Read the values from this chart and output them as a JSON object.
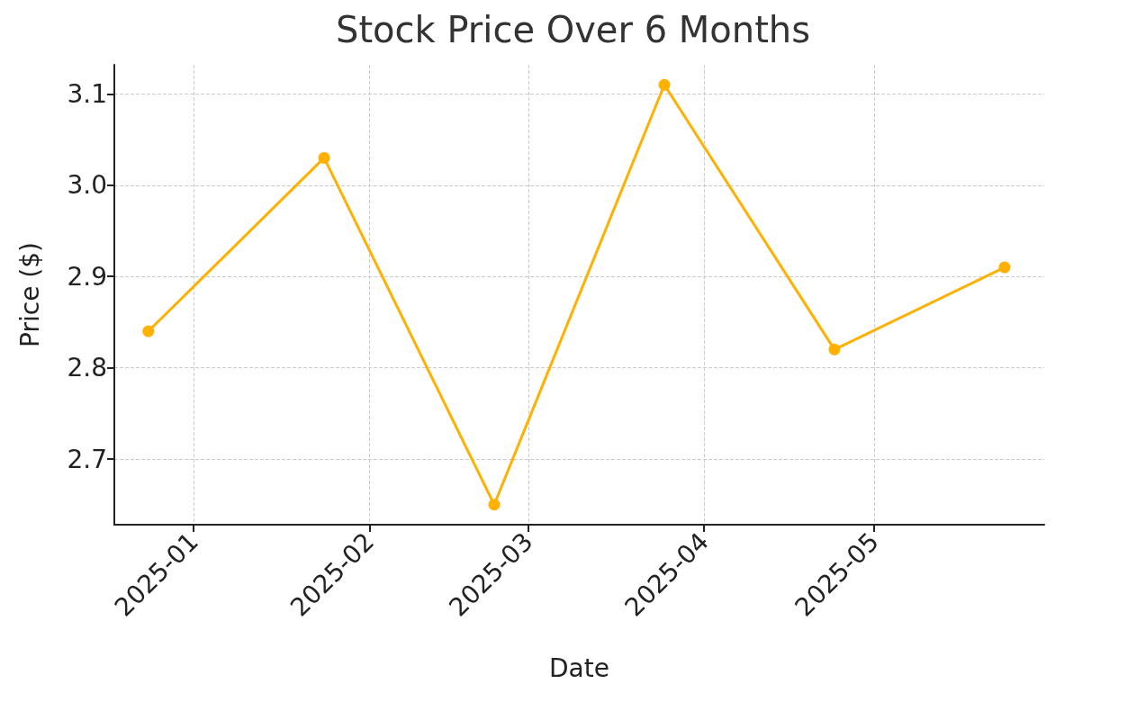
{
  "chart_data": {
    "type": "line",
    "title": "Stock Price Over 6 Months",
    "xlabel": "Date",
    "ylabel": "Price ($)",
    "x": [
      "2024-12-24",
      "2025-01-24",
      "2025-02-23",
      "2025-03-25",
      "2025-04-24",
      "2025-05-24"
    ],
    "series": [
      {
        "color": "#ffb000",
        "values": [
          2.84,
          3.03,
          2.65,
          3.11,
          2.82,
          2.91
        ]
      }
    ],
    "xlim": [
      "2024-12-18",
      "2025-05-31"
    ],
    "xticks": [
      {
        "value": "2025-01-01",
        "label": "2025-01"
      },
      {
        "value": "2025-02-01",
        "label": "2025-02"
      },
      {
        "value": "2025-03-01",
        "label": "2025-03"
      },
      {
        "value": "2025-04-01",
        "label": "2025-04"
      },
      {
        "value": "2025-05-01",
        "label": "2025-05"
      }
    ],
    "ylim": [
      2.628,
      3.132
    ],
    "yticks": [
      2.7,
      2.8,
      2.9,
      {
        "value": 3.0,
        "label": "3.0"
      },
      3.1
    ],
    "grid": true,
    "marker": "circle",
    "line_style": "solid"
  }
}
